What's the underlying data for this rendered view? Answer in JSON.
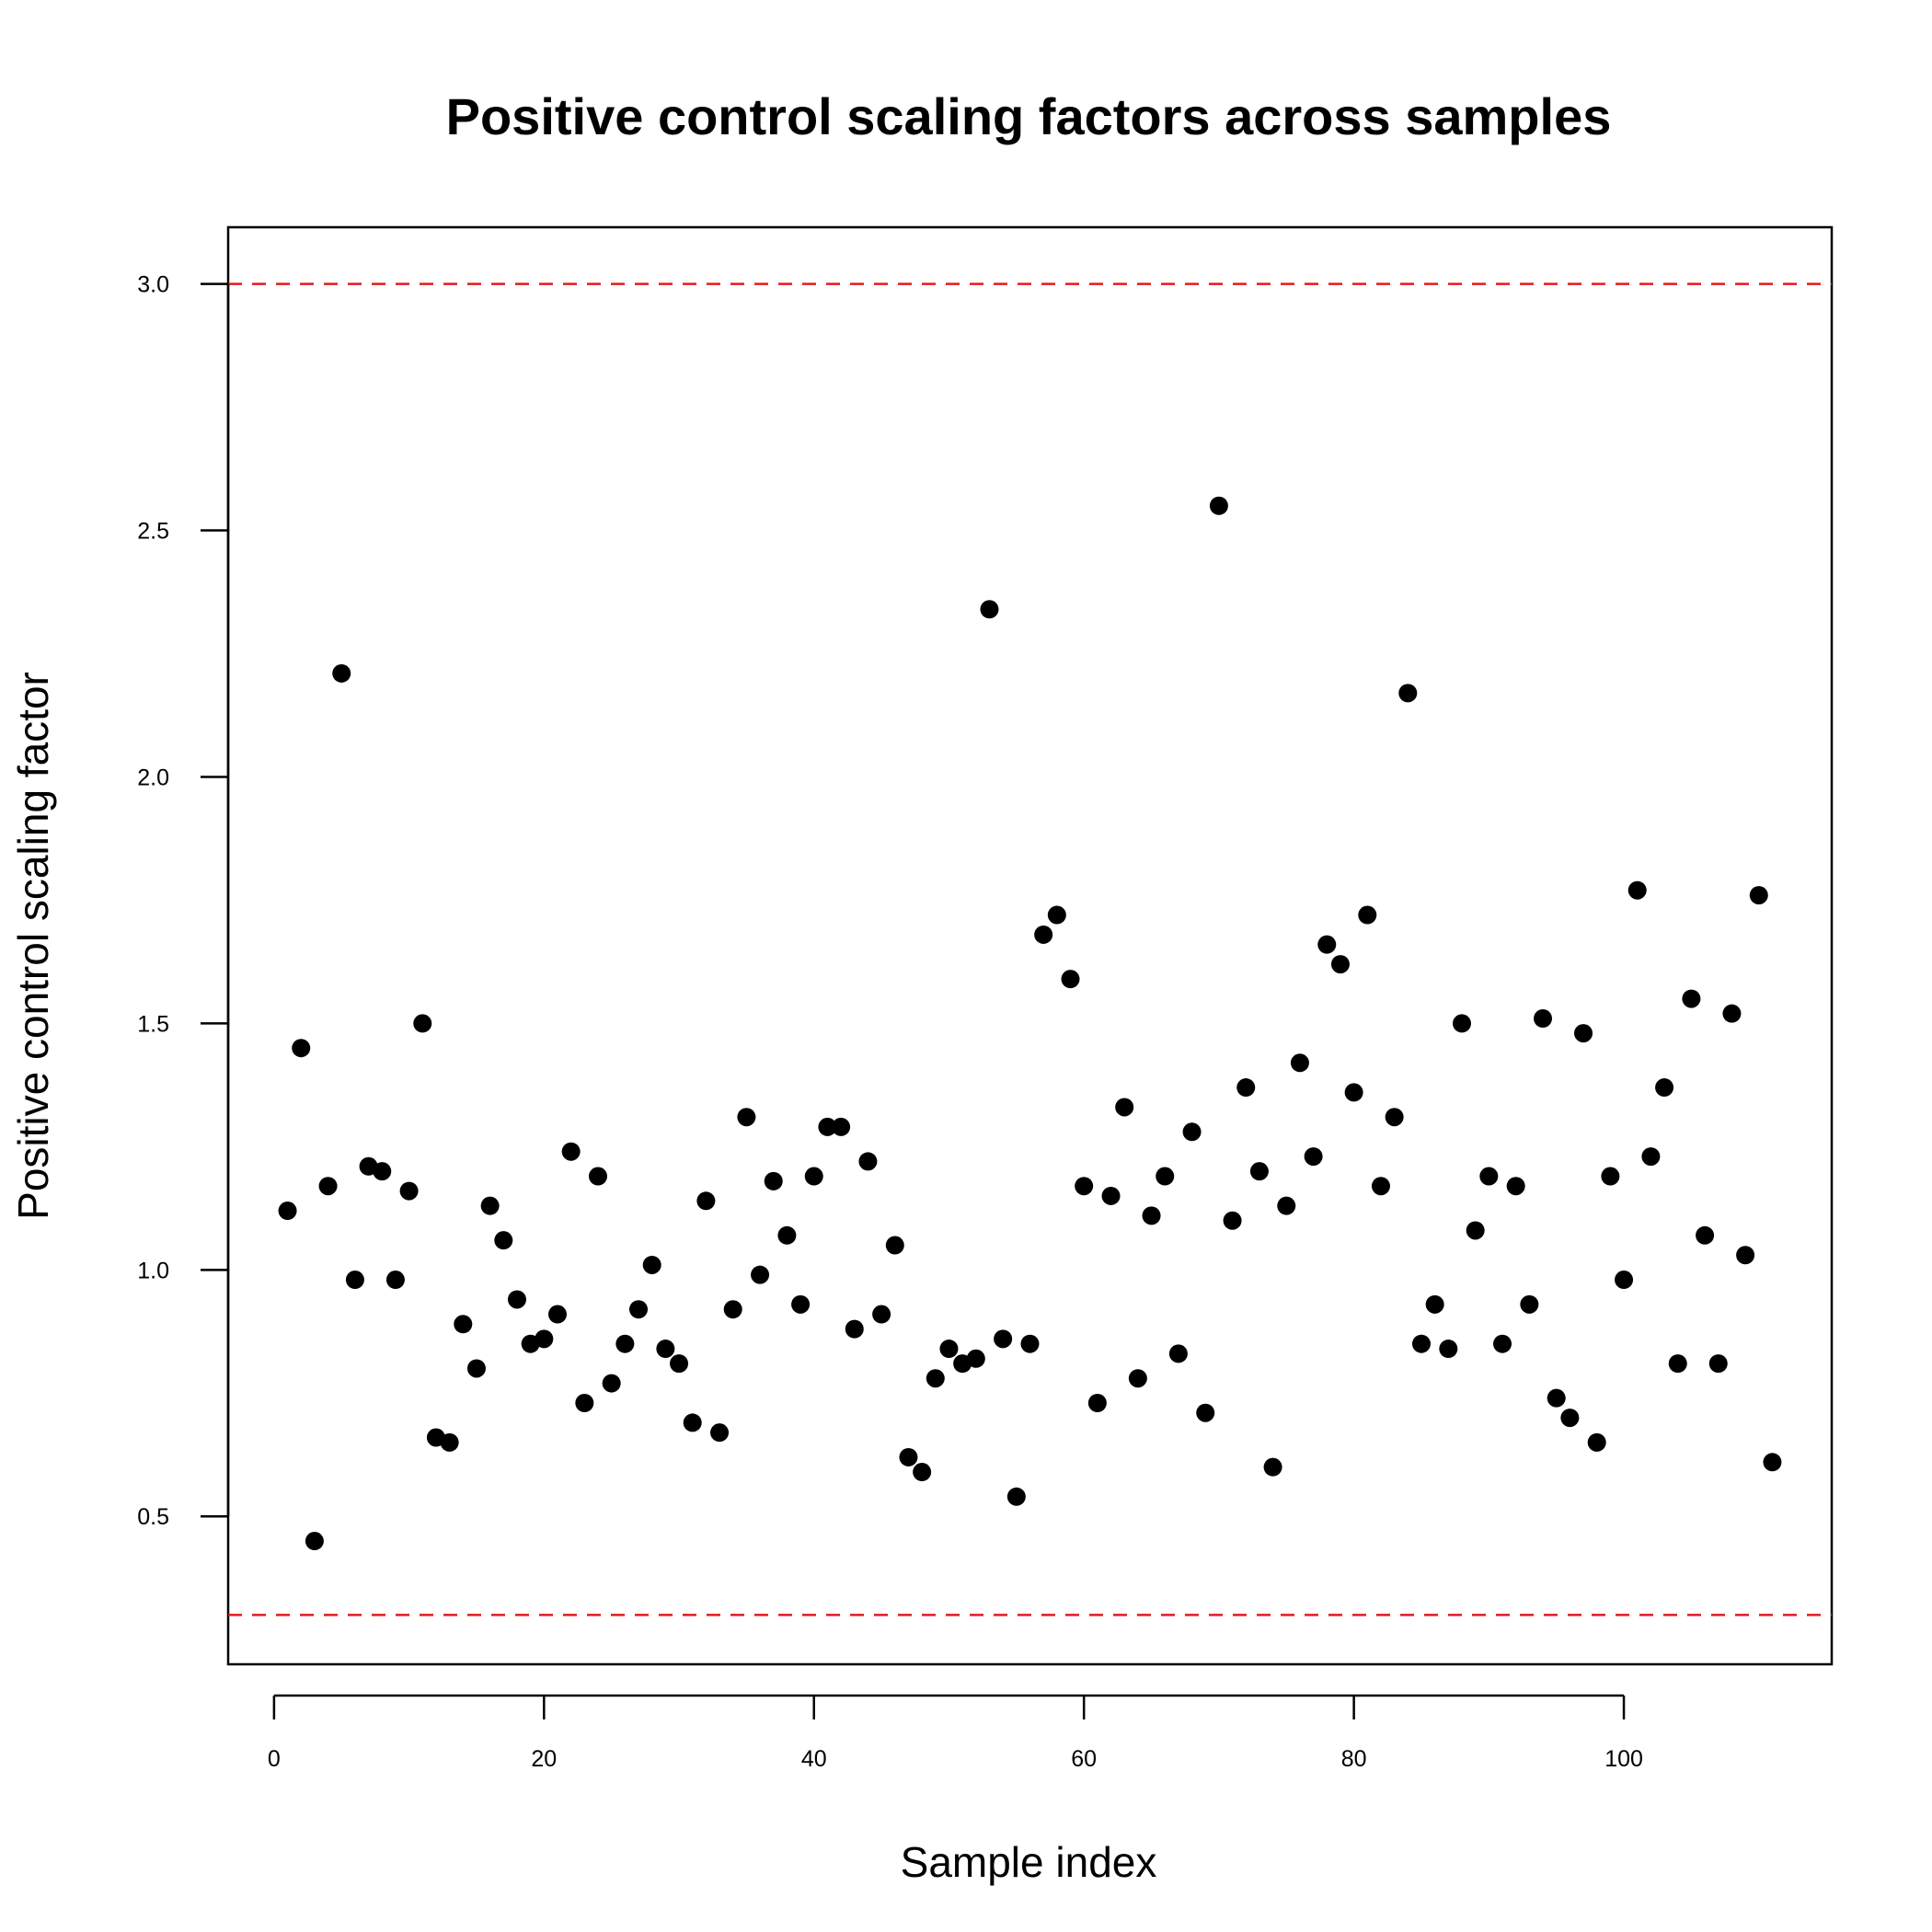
{
  "chart_data": {
    "type": "scatter",
    "title": "Positive control scaling factors across samples",
    "xlabel": "Sample index",
    "ylabel": "Positive control scaling factor",
    "xlim": [
      -3.4,
      115.4
    ],
    "ylim": [
      0.2,
      3.115
    ],
    "xticks": [
      0,
      20,
      40,
      60,
      80,
      100
    ],
    "xtick_labels": [
      "0",
      "20",
      "40",
      "60",
      "80",
      "100"
    ],
    "yticks": [
      0.5,
      1.0,
      1.5,
      2.0,
      2.5,
      3.0
    ],
    "ytick_labels": [
      "0.5",
      "1.0",
      "1.5",
      "2.0",
      "2.5",
      "3.0"
    ],
    "grid": false,
    "legend": "none",
    "point_color": "#000000",
    "reference_lines": [
      {
        "y": 3.0,
        "style": "dashed",
        "color": "#e41a1c"
      },
      {
        "y": 0.3,
        "style": "dashed",
        "color": "#e41a1c"
      }
    ],
    "x": [
      1,
      2,
      3,
      4,
      5,
      6,
      7,
      8,
      9,
      10,
      11,
      12,
      13,
      14,
      15,
      16,
      17,
      18,
      19,
      20,
      21,
      22,
      23,
      24,
      25,
      26,
      27,
      28,
      29,
      30,
      31,
      32,
      33,
      34,
      35,
      36,
      37,
      38,
      39,
      40,
      41,
      42,
      43,
      44,
      45,
      46,
      47,
      48,
      49,
      50,
      51,
      52,
      53,
      54,
      55,
      56,
      57,
      58,
      59,
      60,
      61,
      62,
      63,
      64,
      65,
      66,
      67,
      68,
      69,
      70,
      71,
      72,
      73,
      74,
      75,
      76,
      77,
      78,
      79,
      80,
      81,
      82,
      83,
      84,
      85,
      86,
      87,
      88,
      89,
      90,
      91,
      92,
      93,
      94,
      95,
      96,
      97,
      98,
      99,
      100,
      101,
      102,
      103,
      104,
      105,
      106,
      107,
      108,
      109,
      110,
      111
    ],
    "y": [
      1.12,
      1.45,
      0.45,
      1.17,
      2.21,
      0.98,
      1.21,
      1.2,
      0.98,
      1.16,
      1.5,
      0.66,
      0.65,
      0.89,
      0.8,
      1.13,
      1.06,
      0.94,
      0.85,
      0.86,
      0.91,
      1.24,
      0.73,
      1.19,
      0.77,
      0.85,
      0.92,
      1.01,
      0.84,
      0.81,
      0.69,
      1.14,
      0.67,
      0.92,
      1.31,
      0.99,
      1.18,
      1.07,
      0.93,
      1.19,
      1.29,
      1.29,
      0.88,
      1.22,
      0.91,
      1.05,
      0.62,
      0.59,
      0.78,
      0.84,
      0.81,
      0.82,
      2.34,
      0.86,
      0.54,
      0.85,
      1.68,
      1.72,
      1.59,
      1.17,
      0.73,
      1.15,
      1.33,
      0.78,
      1.11,
      1.19,
      0.83,
      1.28,
      0.71,
      2.55,
      1.1,
      1.37,
      1.2,
      0.6,
      1.13,
      1.42,
      1.23,
      1.66,
      1.62,
      1.36,
      1.72,
      1.17,
      1.31,
      2.17,
      0.85,
      0.93,
      0.84,
      1.5,
      1.08,
      1.19,
      0.85,
      1.17,
      0.93,
      1.51,
      0.74,
      0.7,
      1.48,
      0.65,
      1.19,
      0.98,
      1.77,
      1.23,
      1.37,
      0.81,
      1.55,
      1.07,
      0.81,
      1.52,
      1.03,
      1.76,
      0.61
    ]
  }
}
